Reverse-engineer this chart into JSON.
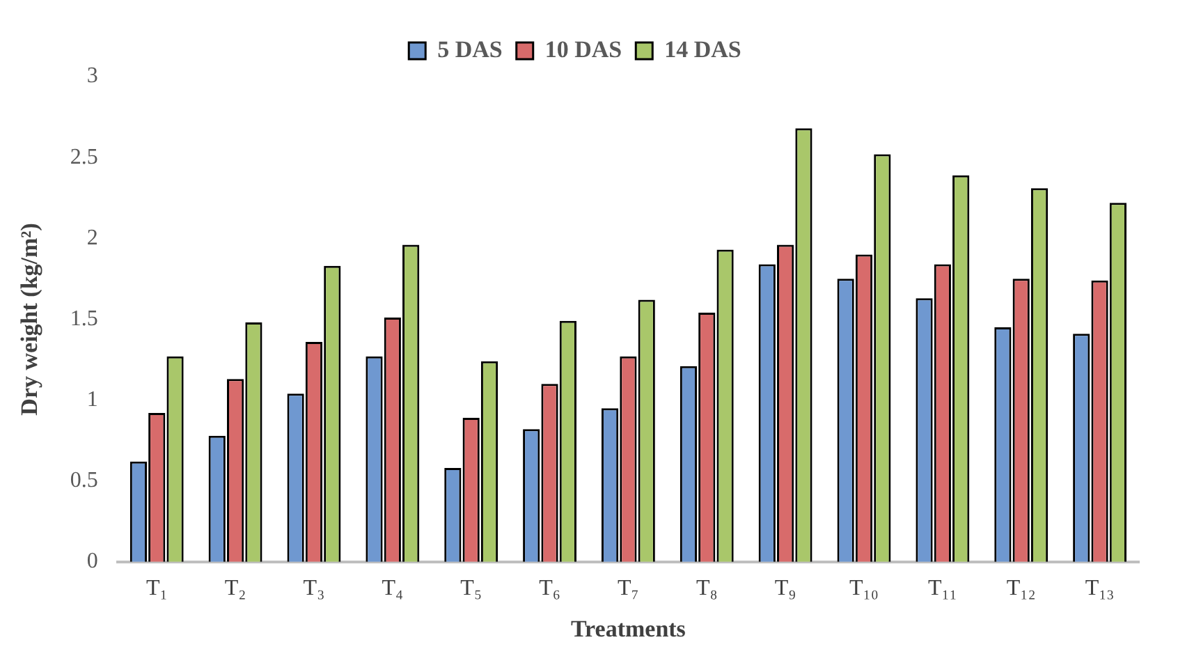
{
  "chart_data": {
    "type": "bar",
    "xlabel": "Treatments",
    "ylabel": "Dry weight (kg/m²)",
    "categories": [
      "T₁",
      "T₂",
      "T₃",
      "T₄",
      "T₅",
      "T₆",
      "T₇",
      "T₈",
      "T₉",
      "T₁₀",
      "T₁₁",
      "T₁₂",
      "T₁₃"
    ],
    "series": [
      {
        "name": "5 DAS",
        "color": "#6f98d0",
        "values": [
          0.62,
          0.78,
          1.04,
          1.27,
          0.58,
          0.82,
          0.95,
          1.21,
          1.84,
          1.75,
          1.63,
          1.45,
          1.41
        ]
      },
      {
        "name": "10 DAS",
        "color": "#d86b6b",
        "values": [
          0.92,
          1.13,
          1.36,
          1.51,
          0.89,
          1.1,
          1.27,
          1.54,
          1.96,
          1.9,
          1.84,
          1.75,
          1.74
        ]
      },
      {
        "name": "14 DAS",
        "color": "#a9c76a",
        "values": [
          1.27,
          1.48,
          1.83,
          1.96,
          1.24,
          1.49,
          1.62,
          1.93,
          2.68,
          2.52,
          2.39,
          2.31,
          2.22
        ]
      }
    ],
    "ylim": [
      0,
      3
    ],
    "yticks": [
      0,
      0.5,
      1,
      1.5,
      2,
      2.5,
      3
    ],
    "grid": false,
    "legend": "top"
  }
}
